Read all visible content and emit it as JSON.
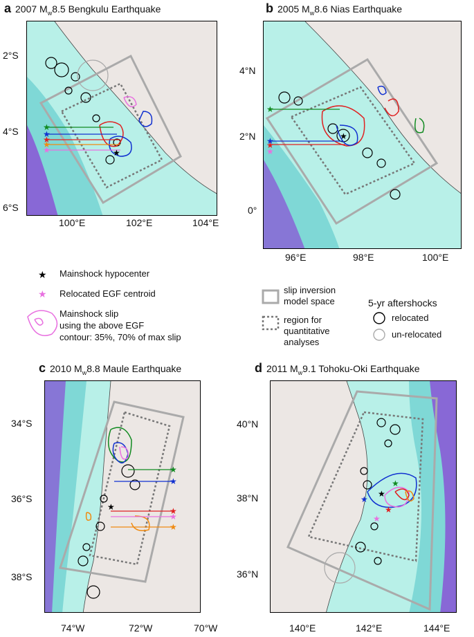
{
  "panels": {
    "a": {
      "letter": "a",
      "title_pre": "2007 M",
      "title_sub": "w",
      "title_post": "8.5 Bengkulu Earthquake",
      "yticks": [
        "2°S",
        "4°S",
        "6°S"
      ],
      "xticks": [
        "100°E",
        "102°E",
        "104°E"
      ]
    },
    "b": {
      "letter": "b",
      "title_pre": "2005 M",
      "title_sub": "w",
      "title_post": "8.6 Nias Earthquake",
      "yticks": [
        "4°N",
        "2°N",
        "0°"
      ],
      "xticks": [
        "96°E",
        "98°E",
        "100°E"
      ]
    },
    "c": {
      "letter": "c",
      "title_pre": "2010 M",
      "title_sub": "w",
      "title_post": "8.8 Maule Earthquake",
      "yticks": [
        "34°S",
        "36°S",
        "38°S"
      ],
      "xticks": [
        "74°W",
        "72°W",
        "70°W"
      ]
    },
    "d": {
      "letter": "d",
      "title_pre": "2011 M",
      "title_sub": "w",
      "title_post": "9.1 Tohoku-Oki Earthquake",
      "yticks": [
        "40°N",
        "38°N",
        "36°N"
      ],
      "xticks": [
        "140°E",
        "142°E",
        "144°E"
      ]
    }
  },
  "legend": {
    "mainshock": "Mainshock hypocenter",
    "egf": "Relocated EGF centroid",
    "slip_line1": "Mainshock slip",
    "slip_line2": "using the above EGF",
    "slip_line3": "contour: 35%, 70% of max slip",
    "model_line1": "slip inversion",
    "model_line2": "model space",
    "region_line1": "region for",
    "region_line2": "quantitative",
    "region_line3": "analyses",
    "aftershock_title": "5-yr aftershocks",
    "relocated": "relocated",
    "unrelocated": "un-relocated"
  },
  "colors": {
    "land": "#ece7e4",
    "ocean_light": "#b8f0e8",
    "ocean_mid": "#7fd8d6",
    "trench": "#8a55d6",
    "model_space": "#aaaaaa",
    "region": "#777777",
    "egf_star": "#e870e0",
    "series": [
      "#e02020",
      "#1030d0",
      "#108a20",
      "#f08a10",
      "#e870e0"
    ]
  }
}
